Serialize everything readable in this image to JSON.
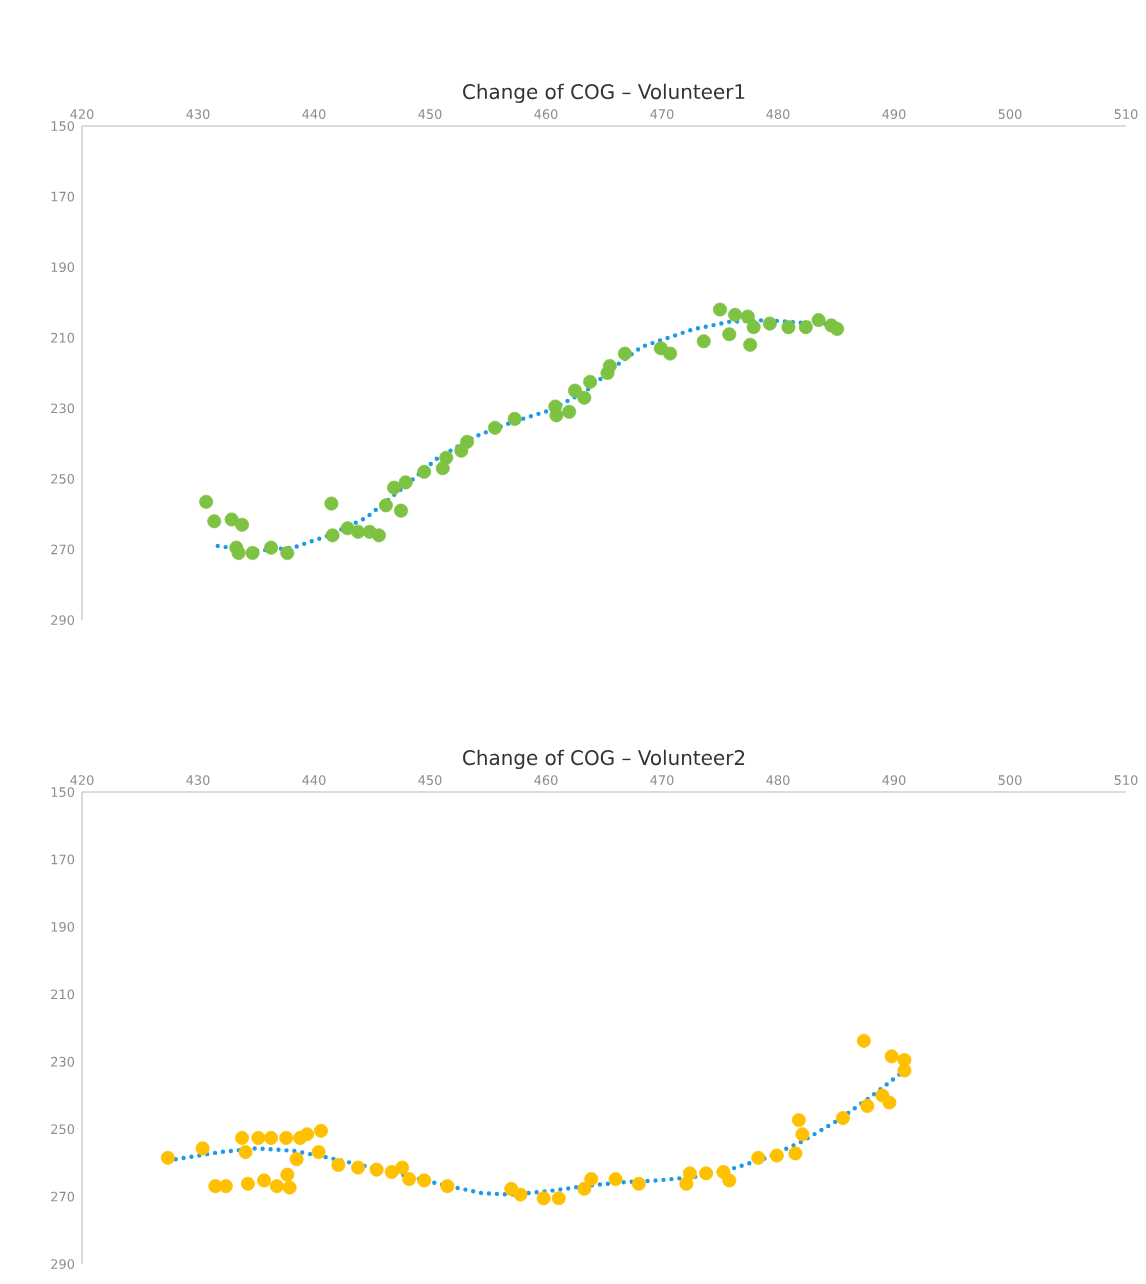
{
  "chart_data": [
    {
      "type": "scatter",
      "title": "Change of COG – Volunteer1",
      "marker": "circle",
      "xlim": [
        420,
        510
      ],
      "ylim": [
        290,
        150
      ],
      "xticks": [
        420,
        430,
        440,
        450,
        460,
        470,
        480,
        490,
        500,
        510
      ],
      "yticks": [
        150,
        170,
        190,
        210,
        230,
        250,
        270,
        290
      ],
      "series": [
        {
          "type": "scatter",
          "color": "#7dc242",
          "x": [
            430.7,
            431.4,
            432.9,
            433.8,
            433.3,
            433.5,
            434.7,
            436.3,
            437.7,
            441.5,
            441.6,
            442.9,
            443.8,
            444.8,
            445.6,
            446.2,
            446.9,
            447.5,
            447.9,
            449.5,
            451.1,
            451.4,
            452.7,
            453.2,
            455.6,
            457.3,
            460.8,
            460.9,
            462.0,
            462.5,
            463.3,
            463.8,
            465.3,
            465.5,
            466.8,
            469.9,
            470.7,
            473.6,
            475.0,
            475.8,
            476.3,
            477.4,
            477.6,
            477.9,
            479.3,
            480.9,
            482.4,
            483.5,
            484.6,
            485.1
          ],
          "values": [
            256.5,
            262,
            261.5,
            263,
            269.5,
            271,
            271,
            269.5,
            271,
            257,
            266,
            264,
            265,
            265,
            266,
            257.5,
            252.5,
            259,
            251,
            248,
            247,
            244,
            242,
            239.5,
            235.5,
            233,
            229.5,
            232,
            231,
            225,
            227,
            222.5,
            220,
            218,
            214.5,
            213,
            214.5,
            211,
            202,
            209,
            203.5,
            204,
            212,
            207,
            206,
            207,
            207,
            205,
            206.5,
            207.5
          ]
        },
        {
          "type": "line",
          "color": "#1e9be8",
          "line_style": "dotted",
          "marker": "none",
          "x": [
            431.7,
            434.7,
            438.2,
            441.3,
            444.5,
            447.6,
            450.7,
            453.9,
            457.0,
            460.2,
            463.3,
            466.4,
            468.3,
            472.7,
            475.8,
            479.0,
            482.1,
            484.6
          ],
          "values": [
            269,
            270.5,
            269.5,
            266,
            261,
            252.7,
            244,
            238,
            234,
            230.7,
            225.5,
            217,
            212.5,
            207.6,
            205.5,
            205,
            205.8,
            206
          ]
        }
      ]
    },
    {
      "type": "scatter",
      "title": "Change of COG – Volunteer2",
      "marker": "circle",
      "xlim": [
        420,
        510
      ],
      "ylim": [
        290,
        150
      ],
      "xticks": [
        420,
        430,
        440,
        450,
        460,
        470,
        480,
        490,
        500,
        510
      ],
      "yticks": [
        150,
        170,
        190,
        210,
        230,
        250,
        270,
        290
      ],
      "series": [
        {
          "type": "scatter",
          "color": "#ffc000",
          "x": [
            427.4,
            430.4,
            431.5,
            432.4,
            433.8,
            434.1,
            434.3,
            435.2,
            435.7,
            436.3,
            436.8,
            437.6,
            437.7,
            437.9,
            438.5,
            438.8,
            439.4,
            440.6,
            440.4,
            442.1,
            443.8,
            445.4,
            446.7,
            447.6,
            448.2,
            449.5,
            451.5,
            457.0,
            457.8,
            459.8,
            461.1,
            463.3,
            463.9,
            466.0,
            468.0,
            472.1,
            472.4,
            473.8,
            475.3,
            475.8,
            478.3,
            479.9,
            481.5,
            481.8,
            482.1,
            485.6,
            487.4,
            487.7,
            489.0,
            489.6,
            489.8,
            490.9,
            490.9
          ],
          "values": [
            258.5,
            255.7,
            266.9,
            266.9,
            252.6,
            256.8,
            266.2,
            252.6,
            265.2,
            252.6,
            266.9,
            252.6,
            263.5,
            267.3,
            258.9,
            252.6,
            251.5,
            250.5,
            256.8,
            260.6,
            261.4,
            262,
            262.7,
            261.4,
            264.8,
            265.2,
            266.9,
            267.7,
            269.4,
            270.5,
            270.5,
            267.7,
            264.8,
            264.8,
            266.2,
            266.2,
            263.1,
            263.1,
            262.7,
            265.2,
            258.5,
            257.8,
            257.2,
            247.3,
            251.5,
            246.7,
            223.8,
            243.1,
            240,
            242.1,
            228.4,
            229.5,
            232.6
          ]
        },
        {
          "type": "line",
          "color": "#1e9be8",
          "line_style": "dotted",
          "marker": "none",
          "x": [
            427.4,
            431.9,
            435.0,
            438.2,
            441.3,
            444.5,
            447.6,
            450.7,
            454.5,
            457.0,
            460.2,
            463.3,
            466.4,
            469.6,
            472.7,
            475.8,
            479.0,
            482.1,
            485.2,
            488.3,
            490.9
          ],
          "values": [
            259.3,
            256.8,
            255.7,
            256.4,
            258.5,
            261,
            263.5,
            266.2,
            269,
            269.4,
            268.4,
            266.9,
            265.8,
            265.2,
            264.2,
            262,
            258.5,
            253.6,
            247.3,
            239.6,
            232.6
          ]
        }
      ]
    }
  ]
}
